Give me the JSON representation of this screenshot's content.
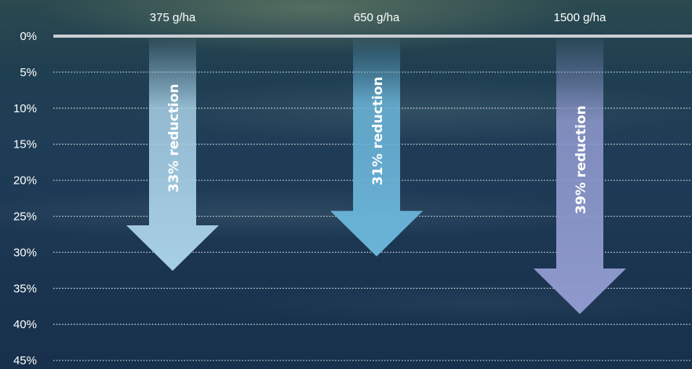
{
  "chart_data": {
    "type": "bar",
    "orientation": "downward-arrows",
    "categories": [
      "375 g/ha",
      "650 g/ha",
      "1500 g/ha"
    ],
    "values": [
      33,
      31,
      39
    ],
    "data_labels": [
      "33% reduction",
      "31% reduction",
      "39% reduction"
    ],
    "yticks": [
      "0%",
      "5%",
      "10%",
      "15%",
      "20%",
      "25%",
      "30%",
      "35%",
      "40%",
      "45%"
    ],
    "ylim": [
      0,
      45
    ],
    "grid": true,
    "colors": [
      "#a7cfe5",
      "#6ab4d8",
      "#8f99cd"
    ]
  }
}
